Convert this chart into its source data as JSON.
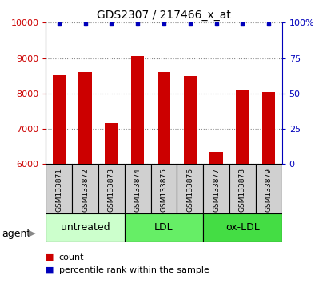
{
  "title": "GDS2307 / 217466_x_at",
  "samples": [
    "GSM133871",
    "GSM133872",
    "GSM133873",
    "GSM133874",
    "GSM133875",
    "GSM133876",
    "GSM133877",
    "GSM133878",
    "GSM133879"
  ],
  "counts": [
    8520,
    8600,
    7150,
    9050,
    8600,
    8490,
    6350,
    8100,
    8050
  ],
  "percentiles": [
    100,
    100,
    100,
    100,
    100,
    100,
    100,
    100,
    100
  ],
  "ylim_left": [
    6000,
    10000
  ],
  "ylim_right": [
    0,
    100
  ],
  "yticks_left": [
    6000,
    7000,
    8000,
    9000,
    10000
  ],
  "yticks_right": [
    0,
    25,
    50,
    75,
    100
  ],
  "bar_color": "#cc0000",
  "dot_color": "#0000bb",
  "groups": [
    {
      "label": "untreated",
      "start": 0,
      "end": 3,
      "color": "#ccffcc"
    },
    {
      "label": "LDL",
      "start": 3,
      "end": 6,
      "color": "#66ee66"
    },
    {
      "label": "ox-LDL",
      "start": 6,
      "end": 9,
      "color": "#44dd44"
    }
  ],
  "group_bg_color": "#d0d0d0",
  "agent_label": "agent",
  "legend_count_label": "count",
  "legend_percentile_label": "percentile rank within the sample",
  "title_fontsize": 10,
  "axis_color_left": "#cc0000",
  "axis_color_right": "#0000bb",
  "bar_width": 0.5,
  "sample_label_fontsize": 6.5,
  "grid_linestyle": "dotted",
  "grid_color": "#888888",
  "grid_alpha": 1.0,
  "ytick_fontsize": 8,
  "right_ytick_fontsize": 8,
  "group_label_fontsize": 9,
  "agent_fontsize": 9,
  "legend_fontsize": 8
}
